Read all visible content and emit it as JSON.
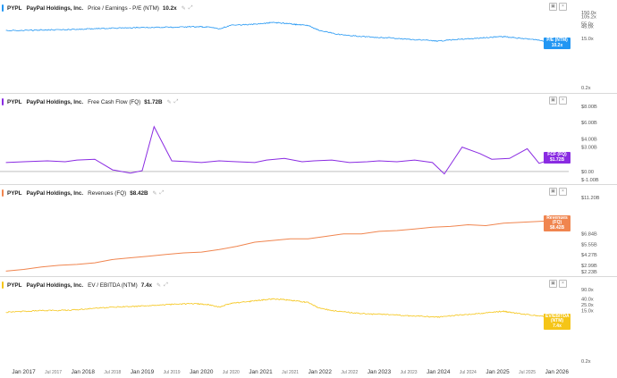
{
  "panels": [
    {
      "ticker": "PYPL",
      "company": "PayPal Holdings, Inc.",
      "metric": "Price / Earnings - P/E (NTM)",
      "value": "10.2x",
      "color": "#2196f3",
      "badge": [
        "P/E (NTM)",
        "10.2x"
      ]
    },
    {
      "ticker": "PYPL",
      "company": "PayPal Holdings, Inc.",
      "metric": "Free Cash Flow (FQ)",
      "value": "$1.72B",
      "color": "#8a2be2",
      "badge": [
        "FCF (FQ)",
        "$1.72B"
      ]
    },
    {
      "ticker": "PYPL",
      "company": "PayPal Holdings, Inc.",
      "metric": "Revenues (FQ)",
      "value": "$8.42B",
      "color": "#f0854f",
      "badge": [
        "Revenues (FQ)",
        "$8.42B"
      ]
    },
    {
      "ticker": "PYPL",
      "company": "PayPal Holdings, Inc.",
      "metric": "EV / EBITDA (NTM)",
      "value": "7.4x",
      "color": "#f5c518",
      "badge": [
        "EV/EBITDA (NTM)",
        "7.4x"
      ]
    }
  ],
  "x_axis_labels": [
    {
      "label": "Jan 2017",
      "major": true
    },
    {
      "label": "Jul 2017",
      "major": false
    },
    {
      "label": "Jan 2018",
      "major": true
    },
    {
      "label": "Jul 2018",
      "major": false
    },
    {
      "label": "Jan 2019",
      "major": true
    },
    {
      "label": "Jul 2019",
      "major": false
    },
    {
      "label": "Jan 2020",
      "major": true
    },
    {
      "label": "Jul 2020",
      "major": false
    },
    {
      "label": "Jan 2021",
      "major": true
    },
    {
      "label": "Jul 2021",
      "major": false
    },
    {
      "label": "Jan 2022",
      "major": true
    },
    {
      "label": "Jul 2022",
      "major": false
    },
    {
      "label": "Jan 2023",
      "major": true
    },
    {
      "label": "Jul 2023",
      "major": false
    },
    {
      "label": "Jan 2024",
      "major": true
    },
    {
      "label": "Jul 2024",
      "major": false
    },
    {
      "label": "Jan 2025",
      "major": true
    },
    {
      "label": "Jul 2025",
      "major": false
    },
    {
      "label": "Jan 2026",
      "major": true
    }
  ],
  "chart_data": [
    {
      "type": "line",
      "title": "PYPL PayPal Holdings, Inc. Price / Earnings - P/E (NTM) 10.2x",
      "scale": "log",
      "ylim": [
        0.2,
        150
      ],
      "yticks": [
        "150.0x",
        "105.2x",
        "55.0x",
        "45.0x",
        "15.0x",
        "10.2x",
        "0.2x"
      ],
      "ytick_values": [
        150,
        105.2,
        55,
        45,
        15,
        10.2,
        0.2
      ],
      "x": [
        2016.7,
        2017.0,
        2017.3,
        2017.6,
        2017.9,
        2018.2,
        2018.5,
        2018.8,
        2019.0,
        2019.3,
        2019.6,
        2019.9,
        2020.1,
        2020.3,
        2020.5,
        2020.8,
        2021.0,
        2021.2,
        2021.4,
        2021.6,
        2021.8,
        2022.0,
        2022.3,
        2022.6,
        2022.9,
        2023.2,
        2023.5,
        2023.8,
        2024.0,
        2024.3,
        2024.6,
        2024.9,
        2025.1,
        2025.3,
        2025.6,
        2025.8,
        2026.0
      ],
      "values": [
        30,
        31,
        32,
        33,
        34,
        36,
        38,
        39,
        40,
        41,
        42,
        43,
        42,
        36,
        48,
        52,
        56,
        62,
        58,
        52,
        48,
        30,
        22,
        19,
        17,
        16,
        14,
        13,
        12,
        14,
        15,
        17,
        18,
        16,
        14,
        12,
        10.2
      ]
    },
    {
      "type": "line",
      "title": "PYPL PayPal Holdings, Inc. Free Cash Flow (FQ) $1.72B",
      "ylim": [
        -1.0,
        8.0
      ],
      "yticks": [
        "$8.00B",
        "$6.00B",
        "$4.00B",
        "$3.00B",
        "$1.72B",
        "$0.00",
        "$-1.00B"
      ],
      "ytick_values": [
        8,
        6,
        4,
        3,
        1.72,
        0,
        -1
      ],
      "x": [
        2016.7,
        2017.0,
        2017.4,
        2017.7,
        2017.9,
        2018.2,
        2018.5,
        2018.8,
        2019.0,
        2019.2,
        2019.5,
        2019.8,
        2020.0,
        2020.3,
        2020.6,
        2020.9,
        2021.1,
        2021.4,
        2021.7,
        2021.9,
        2022.2,
        2022.5,
        2022.8,
        2023.0,
        2023.3,
        2023.6,
        2023.9,
        2024.1,
        2024.4,
        2024.7,
        2024.9,
        2025.2,
        2025.5,
        2025.7,
        2026.0
      ],
      "values": [
        1.1,
        1.2,
        1.3,
        1.2,
        1.4,
        1.5,
        0.2,
        -0.2,
        0.1,
        5.5,
        1.3,
        1.2,
        1.1,
        1.3,
        1.2,
        1.1,
        1.4,
        1.6,
        1.2,
        1.3,
        1.4,
        1.1,
        1.2,
        1.3,
        1.2,
        1.4,
        1.1,
        -0.3,
        3.0,
        2.2,
        1.5,
        1.6,
        2.8,
        1.0,
        1.72
      ]
    },
    {
      "type": "line",
      "title": "PYPL PayPal Holdings, Inc. Revenues (FQ) $8.42B",
      "ylim": [
        2.23,
        11.2
      ],
      "yticks": [
        "$11.20B",
        "$8.42B",
        "$6.84B",
        "$5.55B",
        "$4.27B",
        "$2.99B",
        "$2.23B"
      ],
      "ytick_values": [
        11.2,
        8.42,
        6.84,
        5.55,
        4.27,
        2.99,
        2.23
      ],
      "x": [
        2016.7,
        2017.0,
        2017.3,
        2017.6,
        2017.9,
        2018.2,
        2018.5,
        2018.8,
        2019.1,
        2019.4,
        2019.7,
        2020.0,
        2020.3,
        2020.6,
        2020.9,
        2021.2,
        2021.5,
        2021.8,
        2022.1,
        2022.4,
        2022.7,
        2023.0,
        2023.3,
        2023.6,
        2023.9,
        2024.2,
        2024.5,
        2024.8,
        2025.1,
        2025.4,
        2025.7,
        2026.0
      ],
      "values": [
        2.3,
        2.5,
        2.8,
        3.0,
        3.1,
        3.3,
        3.7,
        3.9,
        4.1,
        4.3,
        4.5,
        4.6,
        4.9,
        5.3,
        5.8,
        6.0,
        6.2,
        6.2,
        6.5,
        6.8,
        6.8,
        7.1,
        7.2,
        7.4,
        7.6,
        7.7,
        7.9,
        7.8,
        8.1,
        8.2,
        8.3,
        8.42
      ]
    },
    {
      "type": "line",
      "title": "PYPL PayPal Holdings, Inc. EV / EBITDA (NTM) 7.4x",
      "scale": "log",
      "ylim": [
        0.2,
        90
      ],
      "yticks": [
        "90.0x",
        "40.0x",
        "25.0x",
        "15.0x",
        "7.4x",
        "0.2x"
      ],
      "ytick_values": [
        90,
        40,
        25,
        15,
        7.4,
        0.2
      ],
      "x": [
        2016.7,
        2017.0,
        2017.3,
        2017.6,
        2017.9,
        2018.2,
        2018.5,
        2018.8,
        2019.0,
        2019.3,
        2019.6,
        2019.9,
        2020.1,
        2020.3,
        2020.5,
        2020.8,
        2021.0,
        2021.2,
        2021.4,
        2021.6,
        2021.8,
        2022.0,
        2022.3,
        2022.6,
        2022.9,
        2023.2,
        2023.5,
        2023.8,
        2024.0,
        2024.3,
        2024.6,
        2024.9,
        2025.1,
        2025.3,
        2025.6,
        2025.8,
        2026.0
      ],
      "values": [
        13,
        14,
        15,
        15,
        16,
        18,
        20,
        21,
        22,
        24,
        26,
        27,
        25,
        20,
        28,
        32,
        36,
        40,
        38,
        34,
        30,
        18,
        14,
        12,
        11,
        10.5,
        9.5,
        9,
        8.5,
        10,
        11,
        13,
        14,
        12,
        10,
        9,
        7.4
      ]
    }
  ]
}
